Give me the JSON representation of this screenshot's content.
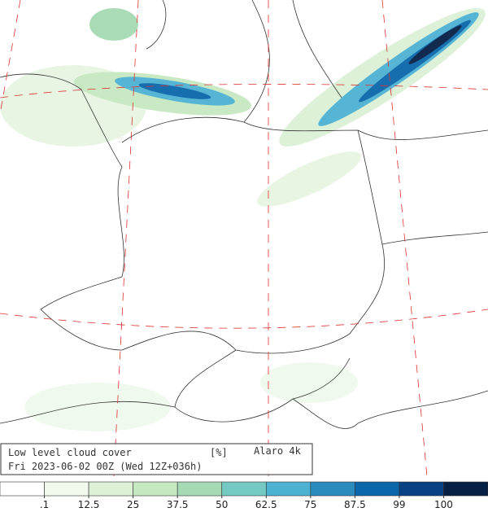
{
  "header": {
    "title": "Low level cloud cover",
    "unit": "[%]",
    "model": "Alaro 4k",
    "valid_time": "Fri 2023-06-02 00Z (Wed 12Z+036h)"
  },
  "legend": {
    "colors": [
      "#ffffff",
      "#f0f9ec",
      "#dcf1d6",
      "#c6e8c0",
      "#a6dab4",
      "#75c9c3",
      "#4db2d2",
      "#2b8bbd",
      "#0b67aa",
      "#084183",
      "#061f45"
    ],
    "ticks": [
      {
        "value": 0.1,
        "label": ".1"
      },
      12.5,
      25,
      37.5,
      50,
      62.5,
      75,
      87.5,
      99,
      100
    ]
  }
}
